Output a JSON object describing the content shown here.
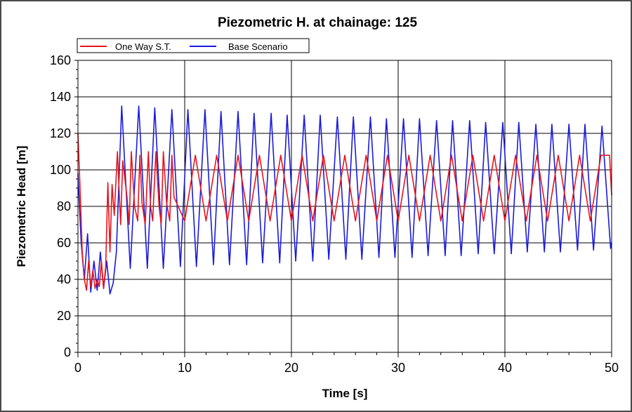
{
  "chart_data": {
    "type": "line",
    "title": "Piezometric H. at chainage: 125",
    "xlabel": "Time [s]",
    "ylabel": "Piezometric Head [m]",
    "xlim": [
      0,
      50
    ],
    "ylim": [
      0,
      160
    ],
    "xticks_major": [
      0,
      10,
      20,
      30,
      40,
      50
    ],
    "xticks_minor": [
      0,
      2,
      4,
      6,
      8,
      10,
      12,
      14,
      16,
      18,
      20,
      22,
      24,
      26,
      28,
      30,
      32,
      34,
      36,
      38,
      40,
      42,
      44,
      46,
      48,
      50
    ],
    "yticks": [
      0,
      20,
      40,
      60,
      80,
      100,
      120,
      140,
      160
    ],
    "grid": true,
    "legend_position": "top-left",
    "series": [
      {
        "name": "One Way S.T.",
        "color": "#e8141b",
        "x": [
          0.0,
          0.2,
          0.4,
          0.6,
          0.8,
          1.0,
          1.2,
          1.4,
          1.6,
          1.8,
          2.0,
          2.2,
          2.4,
          2.6,
          2.8,
          3.0,
          3.2,
          3.4,
          3.7,
          4.0,
          4.2,
          4.6,
          4.8,
          5.0,
          5.3,
          5.6,
          5.8,
          6.0,
          6.3,
          6.6,
          6.8,
          7.0,
          7.3,
          7.6,
          7.8,
          8.0,
          8.3,
          8.6,
          8.8,
          9.0,
          10.0,
          11.0,
          12.0,
          13.0,
          14.0,
          15.0,
          16.0,
          17.0,
          18.0,
          19.0,
          20.0,
          21.0,
          22.0,
          23.0,
          24.0,
          25.0,
          26.0,
          27.0,
          28.0,
          29.0,
          30.0,
          31.0,
          32.0,
          33.0,
          34.0,
          35.0,
          36.0,
          37.0,
          38.0,
          39.0,
          40.0,
          41.0,
          42.0,
          43.0,
          44.0,
          45.0,
          46.0,
          47.0,
          48.0,
          49.0,
          49.8,
          50.0
        ],
        "y": [
          120,
          90,
          55,
          40,
          34,
          50,
          36,
          45,
          35,
          40,
          36,
          50,
          35,
          47,
          93,
          55,
          92,
          75,
          110,
          70,
          105,
          85,
          70,
          110,
          80,
          72,
          108,
          82,
          70,
          110,
          80,
          72,
          110,
          80,
          70,
          110,
          82,
          72,
          108,
          85,
          72,
          108,
          72,
          108,
          72,
          108,
          72,
          108,
          72,
          108,
          72,
          108,
          72,
          108,
          72,
          108,
          72,
          108,
          72,
          108,
          72,
          108,
          72,
          108,
          72,
          108,
          72,
          108,
          72,
          108,
          72,
          108,
          72,
          108,
          72,
          108,
          72,
          108,
          72,
          108,
          108,
          86
        ]
      },
      {
        "name": "Base Scenario",
        "color": "#1a1adc",
        "x": [
          0.0,
          0.3,
          0.6,
          0.9,
          1.2,
          1.5,
          1.8,
          2.1,
          2.4,
          2.7,
          3.0,
          3.3,
          3.6,
          4.1,
          4.9,
          5.7,
          6.5,
          7.2,
          8.0,
          8.8,
          9.6,
          10.3,
          11.1,
          11.9,
          12.7,
          13.4,
          14.2,
          15.0,
          15.8,
          16.5,
          17.3,
          18.1,
          18.9,
          19.6,
          20.4,
          21.2,
          22.0,
          22.7,
          23.5,
          24.3,
          25.1,
          25.8,
          26.6,
          27.4,
          28.2,
          28.9,
          29.7,
          30.5,
          31.3,
          32.0,
          32.8,
          33.6,
          34.4,
          35.1,
          35.9,
          36.7,
          37.5,
          38.2,
          39.0,
          39.8,
          40.6,
          41.3,
          42.1,
          42.9,
          43.7,
          44.4,
          45.2,
          46.0,
          46.8,
          47.5,
          48.3,
          49.1,
          49.9,
          50.0
        ],
        "y": [
          98,
          60,
          40,
          65,
          33,
          50,
          34,
          55,
          35,
          50,
          32,
          38,
          55,
          135,
          46,
          135,
          46,
          134,
          46,
          133,
          47,
          133,
          47,
          133,
          48,
          132,
          48,
          132,
          48,
          131,
          49,
          131,
          49,
          130,
          50,
          130,
          50,
          130,
          51,
          129,
          51,
          129,
          51,
          129,
          52,
          128,
          52,
          128,
          52,
          128,
          53,
          127,
          53,
          127,
          53,
          127,
          54,
          126,
          54,
          126,
          54,
          126,
          55,
          125,
          55,
          125,
          55,
          125,
          56,
          125,
          56,
          124,
          57,
          60
        ]
      }
    ]
  }
}
